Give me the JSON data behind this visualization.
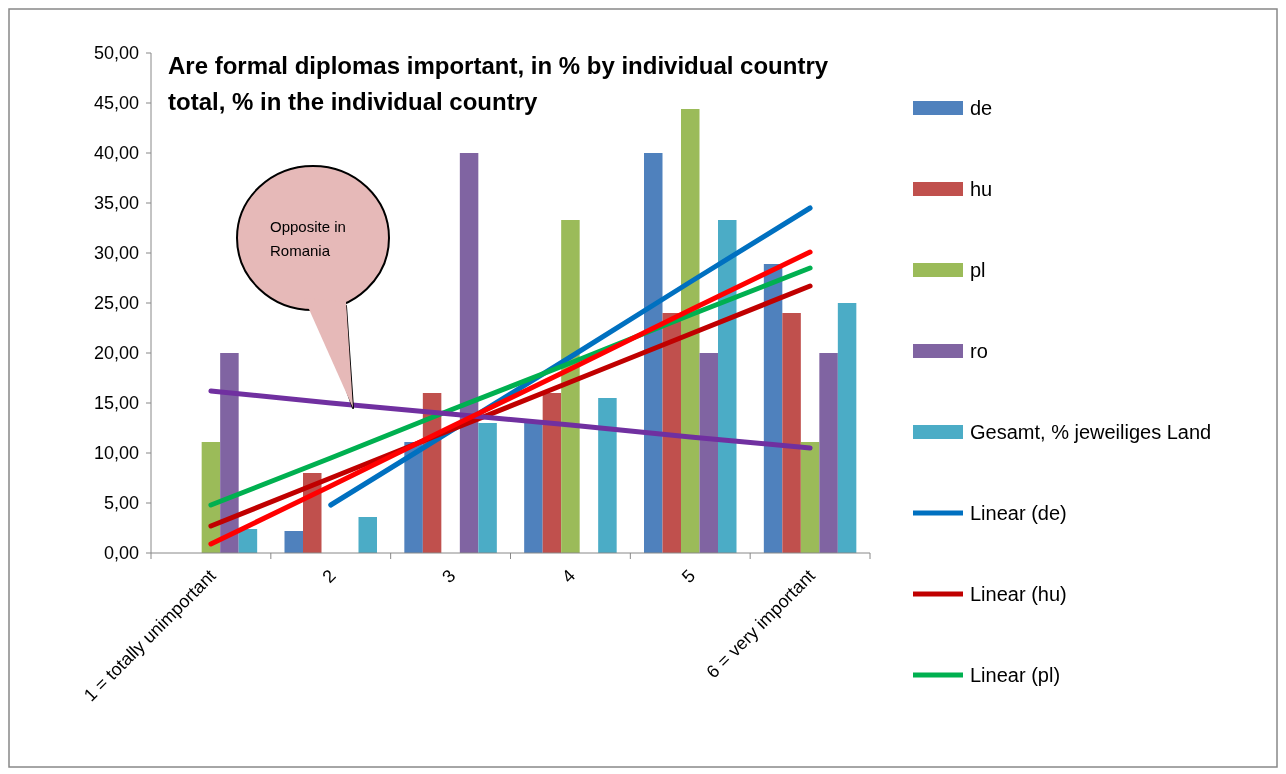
{
  "chart_data": {
    "type": "bar",
    "title": "Are formal diplomas important, in % by individual country total, % in the individual country",
    "categories": [
      "1 = totally unimportant",
      "2",
      "3",
      "4",
      "5",
      "6 = very important"
    ],
    "series": [
      {
        "name": "de",
        "color": "#4f81bd",
        "values": [
          0,
          2.2,
          11.1,
          13.3,
          40,
          28.9
        ]
      },
      {
        "name": "hu",
        "color": "#c0504d",
        "values": [
          0,
          8,
          16,
          16,
          24,
          24
        ]
      },
      {
        "name": "pl",
        "color": "#9bbb59",
        "values": [
          11.1,
          0,
          0,
          33.3,
          44.4,
          11.1
        ]
      },
      {
        "name": "ro",
        "color": "#8064a2",
        "values": [
          20,
          0,
          40,
          0,
          20,
          20
        ]
      },
      {
        "name": "Gesamt, % jeweiliges Land",
        "color": "#4bacc6",
        "values": [
          2.4,
          3.6,
          13,
          15.5,
          33.3,
          25
        ]
      },
      {
        "type": "line",
        "name": "Linear (de)",
        "color": "#0070c0",
        "values": [
          null,
          4.8,
          12.2,
          19.6,
          27.1,
          34.5
        ]
      },
      {
        "type": "line",
        "name": "Linear (hu)",
        "color": "#c00000",
        "values": [
          2.7,
          7.5,
          12.3,
          17.1,
          21.9,
          26.7
        ]
      },
      {
        "type": "line",
        "name": "Linear (pl)",
        "color": "#00b050",
        "values": [
          4.8,
          9.5,
          14.3,
          19.0,
          23.8,
          28.5
        ]
      },
      {
        "type": "line",
        "color": "#7030a0",
        "values": [
          16.2,
          15.0,
          13.9,
          12.8,
          11.6,
          10.5
        ]
      },
      {
        "type": "line",
        "color": "#ff0000",
        "values": [
          0.9,
          6.7,
          12.6,
          18.4,
          24.3,
          30.1
        ]
      }
    ],
    "ylim": [
      0,
      50
    ],
    "yticks": [
      {
        "value": 0,
        "label": "0,00"
      },
      {
        "value": 5,
        "label": "5,00"
      },
      {
        "value": 10,
        "label": "10,00"
      },
      {
        "value": 15,
        "label": "15,00"
      },
      {
        "value": 20,
        "label": "20,00"
      },
      {
        "value": 25,
        "label": "25,00"
      },
      {
        "value": 30,
        "label": "30,00"
      },
      {
        "value": 35,
        "label": "35,00"
      },
      {
        "value": 40,
        "label": "40,00"
      },
      {
        "value": 45,
        "label": "45,00"
      },
      {
        "value": 50,
        "label": "50,00"
      }
    ],
    "annotations": [
      "Opposite in Romania"
    ],
    "legend": "right",
    "grid": false
  }
}
